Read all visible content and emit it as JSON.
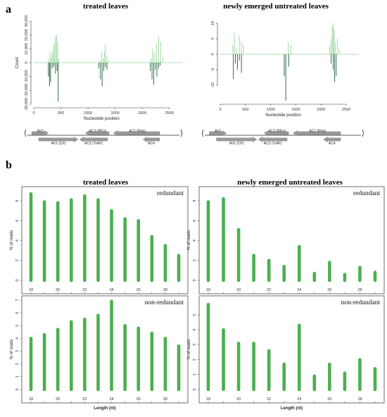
{
  "panel_labels": {
    "a": "a",
    "b": "b"
  },
  "colors": {
    "sense": "#99d69b",
    "antisense": "#1b5e33",
    "bar": "#4caf50",
    "axis": "#333333",
    "gene_arrow": "#999999"
  },
  "panel_a": {
    "xlabel": "Nucleotide position",
    "ylabel": "Count",
    "genome_map": {
      "genes": [
        "AV2",
        "AV1 (CP)",
        "AC3 (REn)",
        "AC2 (TrAP)",
        "AC1 (Rep)",
        "AC4"
      ]
    }
  },
  "panel_b": {
    "xlabel": "Length (nt)",
    "ylabel": "% of reads",
    "row_labels": {
      "redundant": "redundant",
      "non_redundant": "non-redundant"
    }
  },
  "chart_data": [
    {
      "id": "a_left",
      "type": "bar",
      "title": "treated leaves",
      "xlabel": "Nucleotide position",
      "ylabel": "Count",
      "xlim": [
        0,
        2750
      ],
      "ylim": [
        -30000,
        30000
      ],
      "xticks": [
        0,
        500,
        1000,
        1500,
        2000,
        2500
      ],
      "yticks": [
        -30000,
        -20000,
        -10000,
        0,
        10000,
        20000,
        30000
      ],
      "ytick_labels": [
        "-30,000",
        "-20,000",
        "-10,000",
        "0",
        "10,000",
        "20,000",
        "30,000"
      ],
      "series": [
        {
          "x": [
            270,
            300,
            320,
            340,
            360,
            380,
            400,
            420,
            440,
            460,
            1220,
            1250,
            1280,
            1300,
            1320,
            1350,
            1380,
            2160,
            2190,
            2220,
            2260,
            2300,
            2340,
            2380
          ],
          "values": [
            2500,
            8000,
            4000,
            7000,
            12000,
            14000,
            19000,
            20000,
            15000,
            3000,
            2000,
            8000,
            3000,
            8000,
            13000,
            5000,
            2000,
            3000,
            10000,
            7000,
            14000,
            19000,
            15000,
            4000
          ]
        },
        {
          "x": [
            270,
            290,
            310,
            340,
            370,
            400,
            430,
            450,
            1200,
            1230,
            1260,
            1290,
            1320,
            1350,
            2150,
            2180,
            2210,
            2240,
            2270,
            2300,
            2330
          ],
          "values": [
            -10000,
            -17000,
            -14000,
            -4000,
            -3000,
            -8000,
            -6000,
            -28000,
            -4000,
            -12000,
            -17000,
            -6000,
            -3000,
            -5000,
            -6000,
            -12000,
            -16000,
            -5000,
            -10000,
            -4000,
            -2000
          ]
        }
      ]
    },
    {
      "id": "a_right",
      "type": "bar",
      "title": "newly emerged untreated leaves",
      "xlabel": "Nucleotide position",
      "ylabel": "",
      "xlim": [
        0,
        2750
      ],
      "ylim": [
        -15,
        10
      ],
      "xticks": [
        0,
        500,
        1000,
        1500,
        2000,
        2500
      ],
      "yticks": [
        -10,
        -5,
        0,
        5,
        10
      ],
      "ytick_labels": [
        "-10",
        "-5",
        "0",
        "5",
        "10"
      ],
      "series": [
        {
          "x": [
            250,
            280,
            330,
            380,
            420,
            460,
            1350,
            1400,
            2170,
            2200,
            2220,
            2240,
            2260,
            2280,
            2320,
            2360
          ],
          "values": [
            3,
            7,
            2,
            6,
            4,
            3,
            4,
            3,
            3,
            5,
            9,
            10,
            8,
            4,
            5,
            2
          ]
        },
        {
          "x": [
            260,
            300,
            340,
            380,
            420,
            1270,
            1300,
            1360,
            2200,
            2240,
            2270,
            2300
          ],
          "values": [
            -8,
            -3,
            -5,
            -2,
            -6,
            -7,
            -15,
            -4,
            -3,
            -5,
            -9,
            -7
          ]
        }
      ]
    },
    {
      "id": "b_top_left",
      "type": "bar",
      "title": "treated leaves",
      "subtitle": "redundant",
      "xlabel": "",
      "ylabel": "% of reads",
      "categories": [
        18,
        19,
        20,
        21,
        22,
        23,
        24,
        25,
        26,
        27,
        28,
        29
      ],
      "xtick_labels": [
        "18",
        "20",
        "22",
        "24",
        "26",
        "28"
      ],
      "values": [
        8.7,
        7.9,
        7.8,
        8.1,
        8.5,
        8.1,
        7.0,
        6.2,
        6.0,
        4.4,
        3.5,
        2.5
      ],
      "ylim": [
        0,
        9
      ],
      "yticks": [
        0,
        2,
        4,
        6,
        8
      ]
    },
    {
      "id": "b_top_right",
      "type": "bar",
      "title": "newly emerged untreated leaves",
      "subtitle": "redundant",
      "xlabel": "",
      "ylabel": "% of reads",
      "categories": [
        18,
        19,
        20,
        21,
        22,
        23,
        24,
        25,
        26,
        27,
        28,
        29
      ],
      "xtick_labels": [
        "18",
        "20",
        "22",
        "24",
        "26",
        "28"
      ],
      "values": [
        7.9,
        8.2,
        5.1,
        2.5,
        2.0,
        1.4,
        3.4,
        0.7,
        1.8,
        0.6,
        1.3,
        0.8
      ],
      "ylim": [
        0,
        9
      ],
      "yticks": [
        0,
        2,
        4,
        6,
        8
      ]
    },
    {
      "id": "b_bottom_left",
      "type": "bar",
      "title": "",
      "subtitle": "non-redundant",
      "xlabel": "Length (nt)",
      "ylabel": "% of reads",
      "categories": [
        18,
        19,
        20,
        21,
        22,
        23,
        24,
        25,
        26,
        27,
        28,
        29
      ],
      "xtick_labels": [
        "18",
        "20",
        "22",
        "24",
        "26",
        "28"
      ],
      "values": [
        4.0,
        4.3,
        4.7,
        5.3,
        5.5,
        5.8,
        6.9,
        5.0,
        4.8,
        4.4,
        4.0,
        3.4
      ],
      "ylim": [
        0,
        7
      ],
      "yticks": [
        0,
        1,
        2,
        3,
        4,
        5,
        6,
        7
      ]
    },
    {
      "id": "b_bottom_right",
      "type": "bar",
      "title": "",
      "subtitle": "non-redundant",
      "xlabel": "Length (nt)",
      "ylabel": "% of reads",
      "categories": [
        18,
        19,
        20,
        21,
        22,
        23,
        24,
        25,
        26,
        27,
        28,
        29
      ],
      "xtick_labels": [
        "18",
        "20",
        "22",
        "24",
        "26",
        "28"
      ],
      "values": [
        5.7,
        4.0,
        3.1,
        3.1,
        2.6,
        1.7,
        4.3,
        0.9,
        1.7,
        1.1,
        2.0,
        1.4
      ],
      "ylim": [
        0,
        6
      ],
      "yticks": [
        0,
        1,
        2,
        3,
        4,
        5
      ]
    }
  ]
}
